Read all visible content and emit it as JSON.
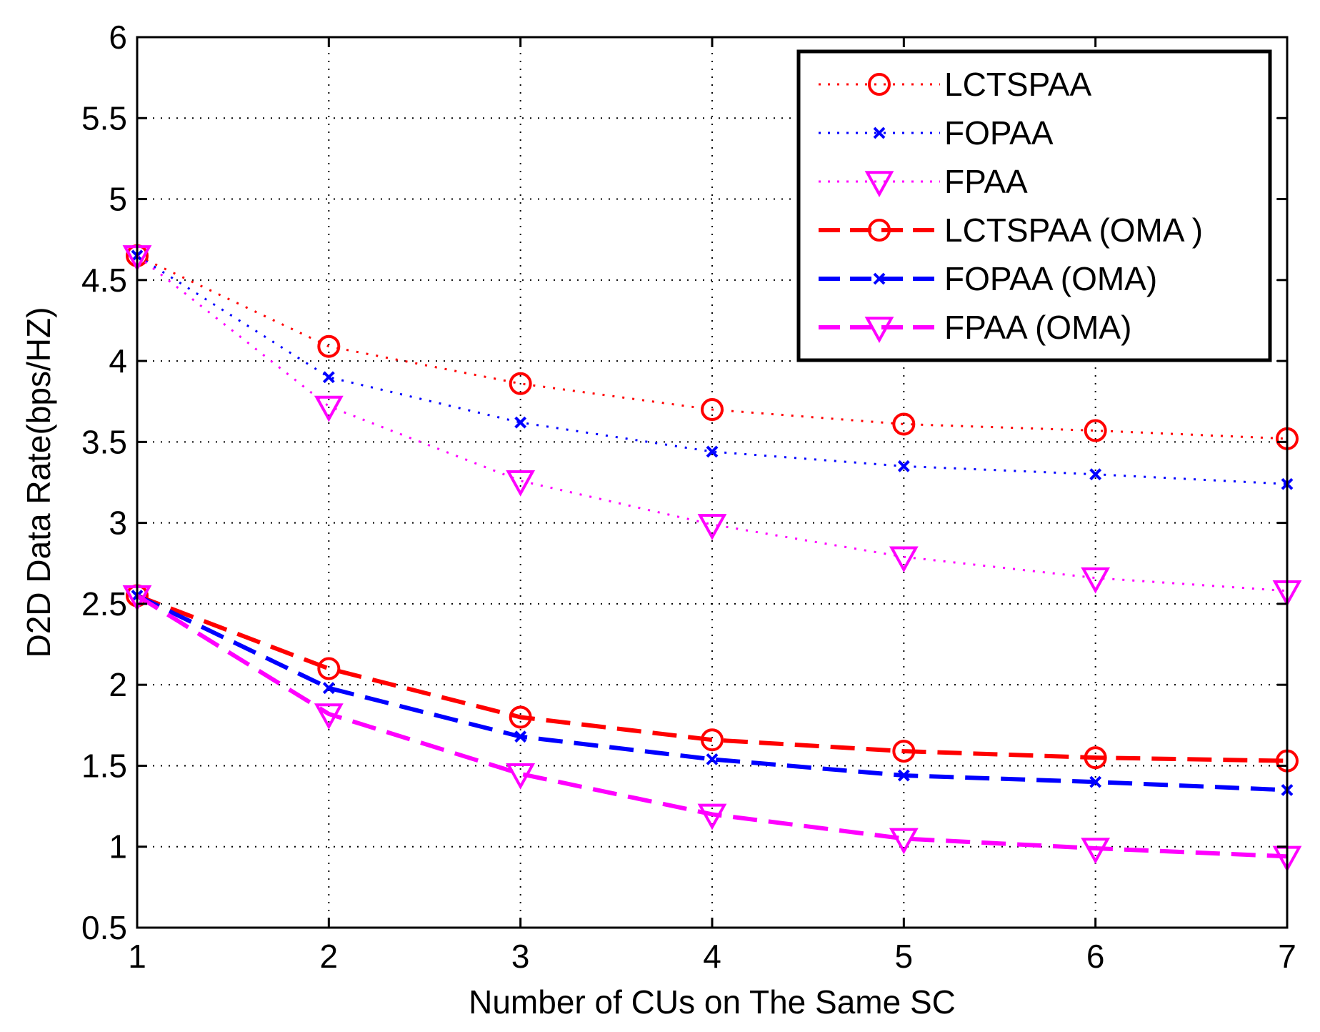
{
  "chart_data": {
    "type": "line",
    "title": "",
    "xlabel": "Number of CUs on The Same SC",
    "ylabel": "D2D Data Rate(bps/HZ)",
    "xlim": [
      1,
      7
    ],
    "ylim": [
      0.5,
      6
    ],
    "grid": true,
    "legend_position": "top-right",
    "x": [
      1,
      2,
      3,
      4,
      5,
      6,
      7
    ],
    "x_ticks": [
      "1",
      "2",
      "3",
      "4",
      "5",
      "6",
      "7"
    ],
    "y_ticks": [
      "0.5",
      "1",
      "1.5",
      "2",
      "2.5",
      "3",
      "3.5",
      "4",
      "4.5",
      "5",
      "5.5",
      "6"
    ],
    "series": [
      {
        "name": "LCTSPAA",
        "color": "#ff0000",
        "line_style": "dotted",
        "marker": "circle",
        "values": [
          4.65,
          4.09,
          3.86,
          3.7,
          3.61,
          3.57,
          3.52
        ]
      },
      {
        "name": "FOPAA",
        "color": "#0000ff",
        "line_style": "dotted",
        "marker": "x",
        "values": [
          4.65,
          3.9,
          3.62,
          3.44,
          3.35,
          3.3,
          3.24
        ]
      },
      {
        "name": "FPAA",
        "color": "#ff00ff",
        "line_style": "dotted",
        "marker": "triangle-down",
        "values": [
          4.65,
          3.72,
          3.26,
          2.99,
          2.79,
          2.66,
          2.58
        ]
      },
      {
        "name": "LCTSPAA (OMA )",
        "color": "#ff0000",
        "line_style": "dashed",
        "marker": "circle",
        "values": [
          2.55,
          2.1,
          1.8,
          1.66,
          1.59,
          1.55,
          1.53
        ]
      },
      {
        "name": "FOPAA (OMA)",
        "color": "#0000ff",
        "line_style": "dashed",
        "marker": "x",
        "values": [
          2.55,
          1.98,
          1.68,
          1.54,
          1.44,
          1.4,
          1.35
        ]
      },
      {
        "name": "FPAA (OMA)",
        "color": "#ff00ff",
        "line_style": "dashed",
        "marker": "triangle-down",
        "values": [
          2.55,
          1.82,
          1.45,
          1.2,
          1.05,
          0.99,
          0.94
        ]
      }
    ]
  }
}
